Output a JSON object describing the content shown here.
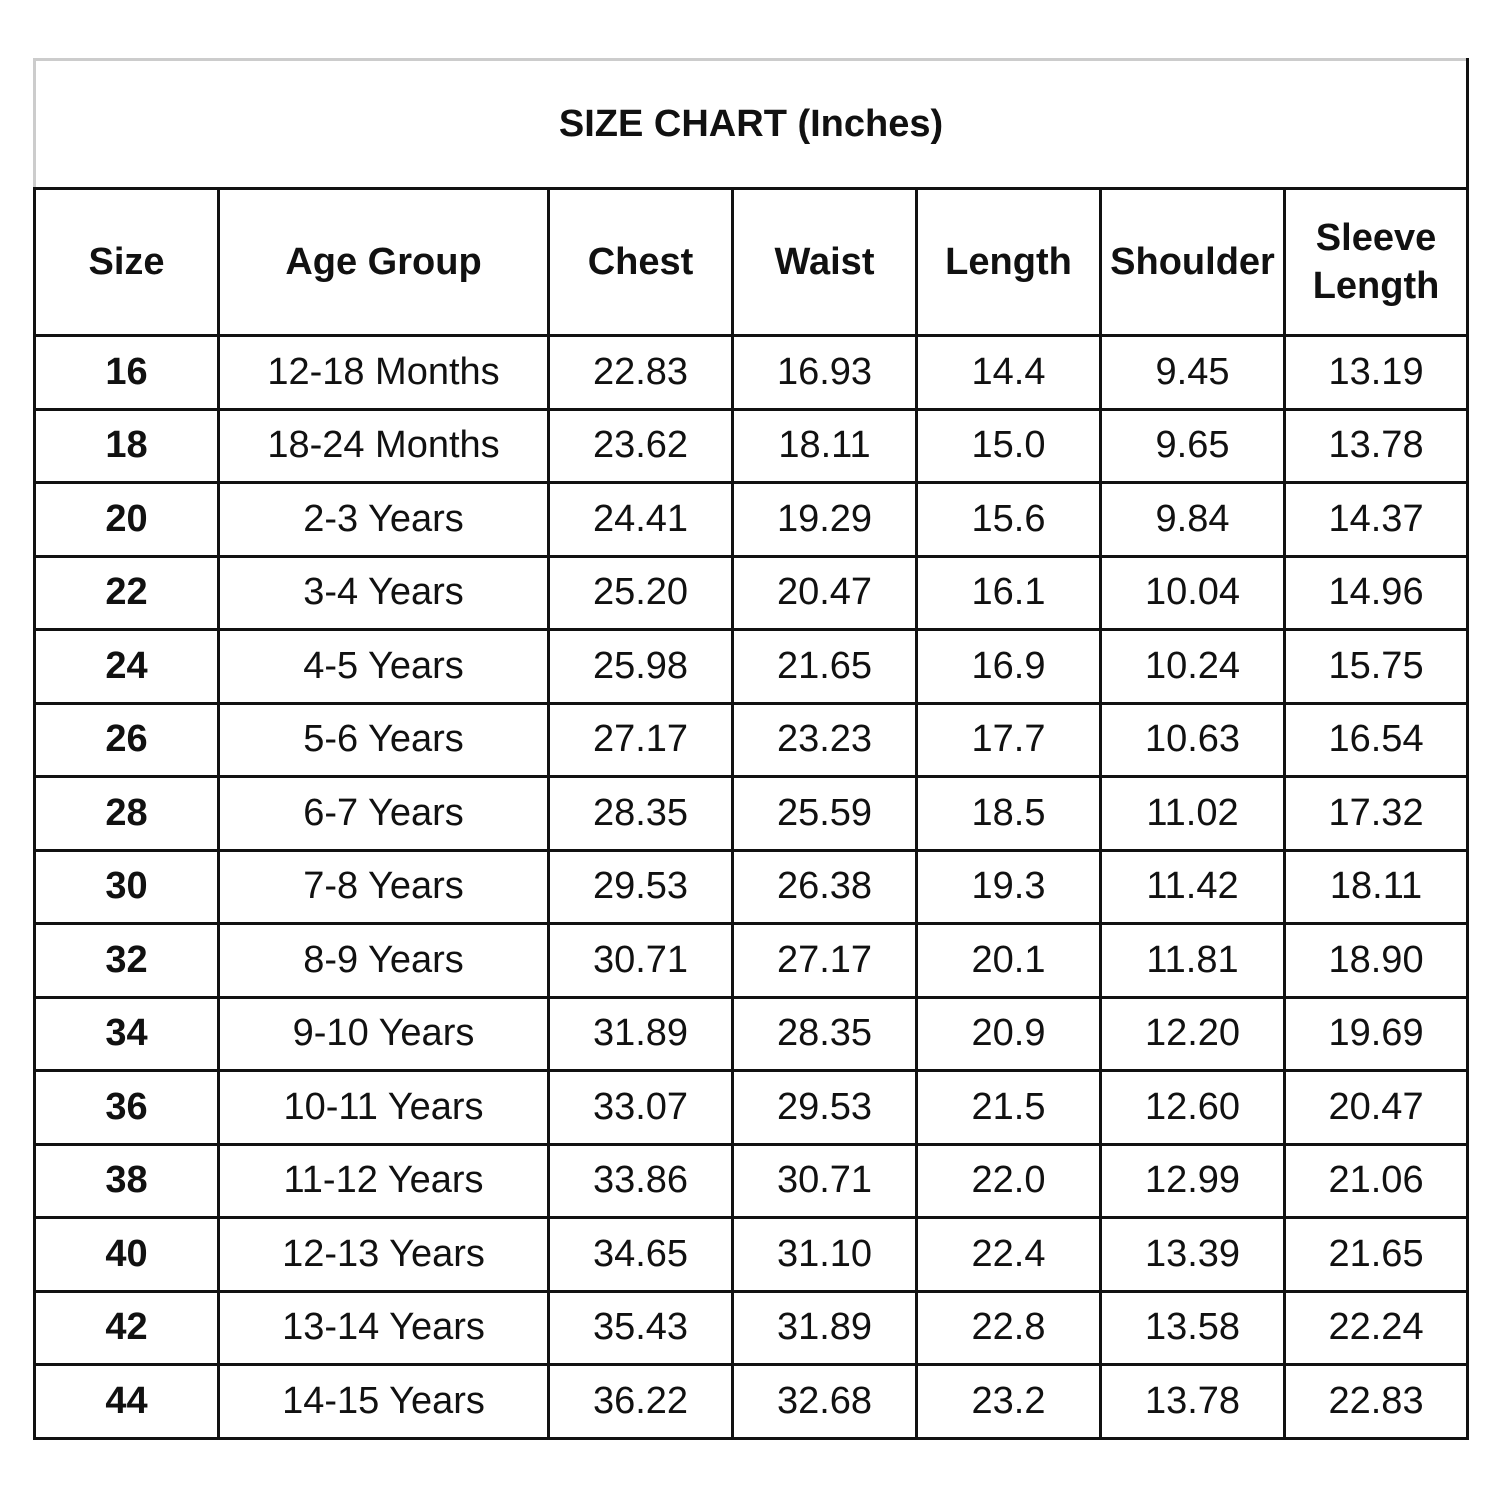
{
  "header": {
    "title": "SIZE CHART (Inches)"
  },
  "table": {
    "columns": [
      "Size",
      "Age Group",
      "Chest",
      "Waist",
      "Length",
      "Shoulder",
      "Sleeve Length"
    ],
    "rows": [
      [
        "16",
        "12-18 Months",
        "22.83",
        "16.93",
        "14.4",
        "9.45",
        "13.19"
      ],
      [
        "18",
        "18-24 Months",
        "23.62",
        "18.11",
        "15.0",
        "9.65",
        "13.78"
      ],
      [
        "20",
        "2-3 Years",
        "24.41",
        "19.29",
        "15.6",
        "9.84",
        "14.37"
      ],
      [
        "22",
        "3-4 Years",
        "25.20",
        "20.47",
        "16.1",
        "10.04",
        "14.96"
      ],
      [
        "24",
        "4-5 Years",
        "25.98",
        "21.65",
        "16.9",
        "10.24",
        "15.75"
      ],
      [
        "26",
        "5-6 Years",
        "27.17",
        "23.23",
        "17.7",
        "10.63",
        "16.54"
      ],
      [
        "28",
        "6-7 Years",
        "28.35",
        "25.59",
        "18.5",
        "11.02",
        "17.32"
      ],
      [
        "30",
        "7-8 Years",
        "29.53",
        "26.38",
        "19.3",
        "11.42",
        "18.11"
      ],
      [
        "32",
        "8-9 Years",
        "30.71",
        "27.17",
        "20.1",
        "11.81",
        "18.90"
      ],
      [
        "34",
        "9-10 Years",
        "31.89",
        "28.35",
        "20.9",
        "12.20",
        "19.69"
      ],
      [
        "36",
        "10-11 Years",
        "33.07",
        "29.53",
        "21.5",
        "12.60",
        "20.47"
      ],
      [
        "38",
        "11-12 Years",
        "33.86",
        "30.71",
        "22.0",
        "12.99",
        "21.06"
      ],
      [
        "40",
        "12-13 Years",
        "34.65",
        "31.10",
        "22.4",
        "13.39",
        "21.65"
      ],
      [
        "42",
        "13-14 Years",
        "35.43",
        "31.89",
        "22.8",
        "13.58",
        "22.24"
      ],
      [
        "44",
        "14-15 Years",
        "36.22",
        "32.68",
        "23.2",
        "13.78",
        "22.83"
      ]
    ]
  }
}
